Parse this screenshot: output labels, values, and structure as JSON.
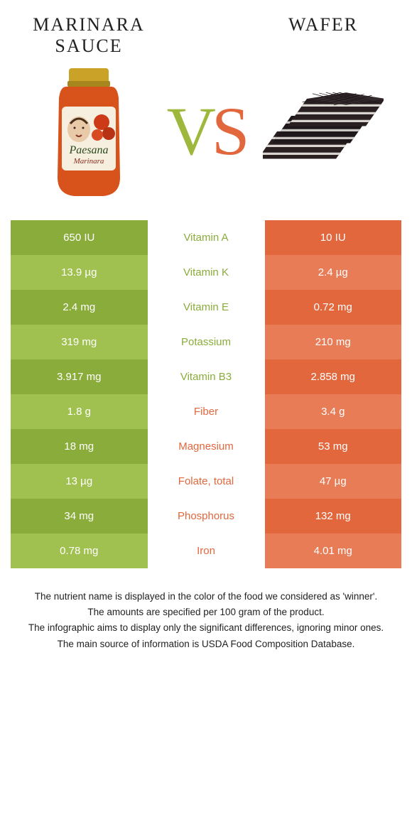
{
  "colors": {
    "green_dark": "#8aac3a",
    "green_light": "#a0c14f",
    "orange_dark": "#e2673d",
    "orange_light": "#e87c56",
    "vs_v": "#9db83c",
    "vs_s": "#e2673d",
    "jar_sauce": "#d8521c",
    "jar_lid": "#c9a227",
    "wafer_dark": "#2a2022",
    "wafer_cream": "#d8d4d0"
  },
  "header": {
    "left_title": "Marinara sauce",
    "right_title": "Wafer",
    "jar_label": "Paesana",
    "jar_sublabel": "Marinara"
  },
  "vs": {
    "v": "V",
    "s": "S"
  },
  "rows": [
    {
      "left": "650 IU",
      "mid": "Vitamin A",
      "right": "10 IU",
      "winner": "left"
    },
    {
      "left": "13.9 µg",
      "mid": "Vitamin K",
      "right": "2.4 µg",
      "winner": "left"
    },
    {
      "left": "2.4 mg",
      "mid": "Vitamin E",
      "right": "0.72 mg",
      "winner": "left"
    },
    {
      "left": "319 mg",
      "mid": "Potassium",
      "right": "210 mg",
      "winner": "left"
    },
    {
      "left": "3.917 mg",
      "mid": "Vitamin B3",
      "right": "2.858 mg",
      "winner": "left"
    },
    {
      "left": "1.8 g",
      "mid": "Fiber",
      "right": "3.4 g",
      "winner": "right"
    },
    {
      "left": "18 mg",
      "mid": "Magnesium",
      "right": "53 mg",
      "winner": "right"
    },
    {
      "left": "13 µg",
      "mid": "Folate, total",
      "right": "47 µg",
      "winner": "right"
    },
    {
      "left": "34 mg",
      "mid": "Phosphorus",
      "right": "132 mg",
      "winner": "right"
    },
    {
      "left": "0.78 mg",
      "mid": "Iron",
      "right": "4.01 mg",
      "winner": "right"
    }
  ],
  "footnotes": [
    "The nutrient name is displayed in the color of the food we considered as 'winner'.",
    "The amounts are specified per 100 gram of the product.",
    "The infographic aims to display only the significant differences, ignoring minor ones.",
    "The main source of information is USDA Food Composition Database."
  ]
}
